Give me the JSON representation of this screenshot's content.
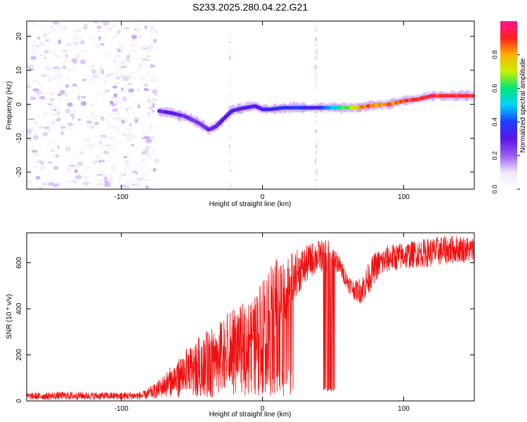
{
  "figure_title": "S233.2025.280.04.22.G21",
  "colors": {
    "snr_line": "#ee1111",
    "spectrum_low": "#8a2be2",
    "colormap": [
      "#ffffff",
      "#f0e6ff",
      "#9b5cf0",
      "#5a16e8",
      "#1e3cff",
      "#00d2ff",
      "#00e676",
      "#c8f000",
      "#ffb000",
      "#ff2020",
      "#ff1493"
    ]
  },
  "chart_data": [
    {
      "type": "heatmap",
      "title": "S233.2025.280.04.22.G21",
      "xlabel": "Height of straight line (km)",
      "ylabel": "Frequency (Hz)",
      "xlim": [
        -167,
        150
      ],
      "ylim": [
        -25,
        24.5
      ],
      "xticks": [
        {
          "value": -100,
          "label": "-100"
        },
        {
          "value": 0,
          "label": "0"
        },
        {
          "value": 100,
          "label": "100"
        }
      ],
      "yticks": [
        {
          "value": -20,
          "label": "-20"
        },
        {
          "value": -10,
          "label": "-10"
        },
        {
          "value": 0,
          "label": "0"
        },
        {
          "value": 10,
          "label": "10"
        },
        {
          "value": 20,
          "label": "20"
        }
      ],
      "noise_region_end_km": -75,
      "vertical_streaks_km": [
        -23,
        38
      ],
      "ridge": {
        "x": [
          -73,
          -65,
          -55,
          -45,
          -38,
          -33,
          -28,
          -22,
          -18,
          -12,
          -5,
          0,
          5,
          15,
          25,
          38,
          50,
          60,
          70,
          80,
          90,
          100,
          110,
          120,
          130,
          145
        ],
        "freq": [
          -2,
          -2.5,
          -3.5,
          -5.5,
          -7.5,
          -6.5,
          -4.5,
          -2,
          -1.5,
          -1,
          -0.5,
          -1.5,
          -1.5,
          -1,
          -1,
          -1,
          -1,
          -1,
          -0.8,
          -0.2,
          0,
          1,
          1.5,
          2.5,
          2.5,
          2.5
        ],
        "amplitude": [
          0.3,
          0.32,
          0.3,
          0.28,
          0.3,
          0.32,
          0.33,
          0.32,
          0.33,
          0.34,
          0.35,
          0.36,
          0.38,
          0.4,
          0.42,
          0.35,
          0.55,
          0.7,
          0.88,
          0.92,
          0.9,
          0.95,
          1.0,
          1.0,
          1.0,
          1.0
        ]
      },
      "colorbar": {
        "label": "Normalized spectral amplitude",
        "range": [
          0,
          1
        ],
        "ticks": [
          {
            "value": 0.0,
            "label": "0.0"
          },
          {
            "value": 0.2,
            "label": "0.2"
          },
          {
            "value": 0.4,
            "label": "0.4"
          },
          {
            "value": 0.6,
            "label": "0.6"
          },
          {
            "value": 0.8,
            "label": "0.8"
          }
        ]
      }
    },
    {
      "type": "line",
      "xlabel": "Height of straight line (km)",
      "ylabel": "SNR (10 * v/v)",
      "xlim": [
        -167,
        150
      ],
      "ylim": [
        0,
        730
      ],
      "xticks": [
        {
          "value": -100,
          "label": "-100"
        },
        {
          "value": 0,
          "label": "0"
        },
        {
          "value": 100,
          "label": "100"
        }
      ],
      "yticks": [
        {
          "value": 0,
          "label": "0"
        },
        {
          "value": 200,
          "label": "200"
        },
        {
          "value": 400,
          "label": "400"
        },
        {
          "value": 600,
          "label": "600"
        }
      ],
      "series": [
        {
          "name": "SNR",
          "envelope": {
            "x": [
              -167,
              -140,
              -110,
              -85,
              -75,
              -65,
              -55,
              -45,
              -35,
              -25,
              -15,
              -5,
              0,
              5,
              10,
              15,
              20,
              25,
              30,
              35,
              40,
              45,
              50,
              55,
              60,
              65,
              70,
              75,
              80,
              90,
              100,
              110,
              120,
              130,
              140,
              150
            ],
            "min": [
              5,
              5,
              5,
              5,
              10,
              20,
              40,
              60,
              80,
              110,
              130,
              150,
              220,
              250,
              280,
              320,
              420,
              460,
              500,
              540,
              560,
              560,
              580,
              540,
              480,
              440,
              420,
              460,
              520,
              560,
              570,
              580,
              580,
              590,
              600,
              600
            ],
            "max": [
              35,
              40,
              38,
              40,
              80,
              150,
              220,
              280,
              320,
              380,
              420,
              460,
              550,
              600,
              620,
              630,
              640,
              660,
              670,
              690,
              700,
              700,
              690,
              620,
              560,
              520,
              540,
              600,
              650,
              680,
              690,
              700,
              710,
              720,
              720,
              710
            ]
          },
          "dropouts": [
            {
              "x": [
                -30,
                22
              ],
              "note": "spiky oscillation between envelope and low values"
            },
            {
              "x": [
                43,
                51
              ],
              "low": 40
            }
          ]
        }
      ]
    }
  ]
}
